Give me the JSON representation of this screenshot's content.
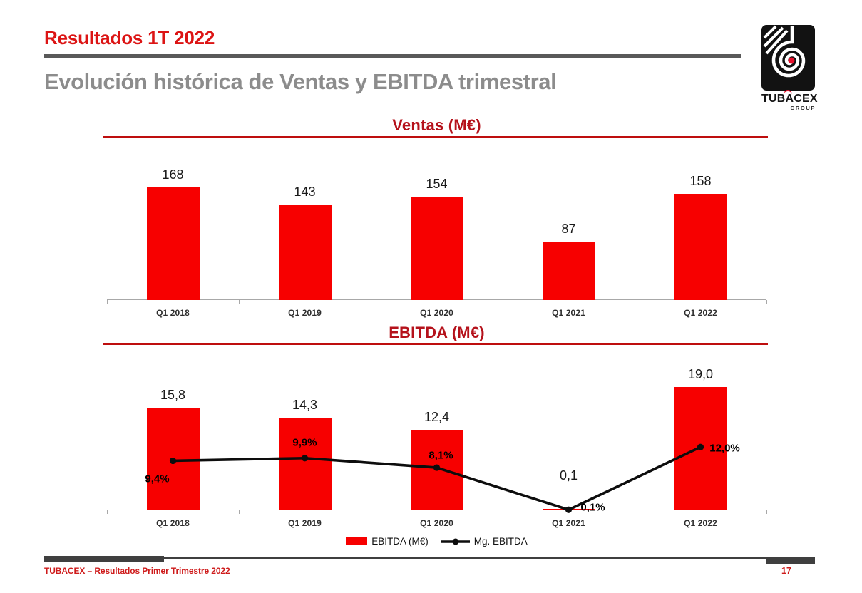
{
  "slide": {
    "kicker": "Resultados 1T 2022",
    "title": "Evolución histórica de Ventas y EBITDA trimestral",
    "footer_text": "TUBACEX – Resultados Primer Trimestre 2022",
    "page_number": "17"
  },
  "logo": {
    "brand": "TUBACEX",
    "group": "GROUP"
  },
  "colors": {
    "bright_red": "#DC1414",
    "dark_red": "#B5121B",
    "rule_red": "#BE0E0E",
    "bar_red": "#F70000",
    "gray_title": "#8C8C8C",
    "header_rule": "#595959",
    "footer_gray": "#3F3F3F",
    "axis_gray": "#A8A8A8",
    "accent_red": "#E8112D"
  },
  "chart_data": [
    {
      "id": "ventas",
      "type": "bar",
      "title": "Ventas (M€)",
      "categories": [
        "Q1 2018",
        "Q1 2019",
        "Q1 2020",
        "Q1 2021",
        "Q1 2022"
      ],
      "values": [
        168,
        143,
        154,
        87,
        158
      ],
      "value_labels": [
        "168",
        "143",
        "154",
        "87",
        "158"
      ],
      "xlabel": "",
      "ylabel": "",
      "ylim": [
        0,
        180
      ],
      "grid": false,
      "legend_position": "none"
    },
    {
      "id": "ebitda",
      "type": "bar+line",
      "title": "EBITDA (M€)",
      "categories": [
        "Q1 2018",
        "Q1 2019",
        "Q1 2020",
        "Q1 2021",
        "Q1 2022"
      ],
      "series": [
        {
          "name": "EBITDA (M€)",
          "type": "bar",
          "values": [
            15.8,
            14.3,
            12.4,
            0.1,
            19.0
          ],
          "value_labels": [
            "15,8",
            "14,3",
            "12,4",
            "0,1",
            "19,0"
          ]
        },
        {
          "name": "Mg. EBITDA",
          "type": "line",
          "unit": "%",
          "values": [
            9.4,
            9.9,
            8.1,
            0.1,
            12.0
          ],
          "value_labels": [
            "9,4%",
            "9,9%",
            "8,1%",
            "0,1%",
            "12,0%"
          ]
        }
      ],
      "legend": [
        "EBITDA (M€)",
        "Mg. EBITDA"
      ],
      "legend_position": "bottom",
      "ylim": [
        0,
        20
      ],
      "grid": false
    }
  ]
}
